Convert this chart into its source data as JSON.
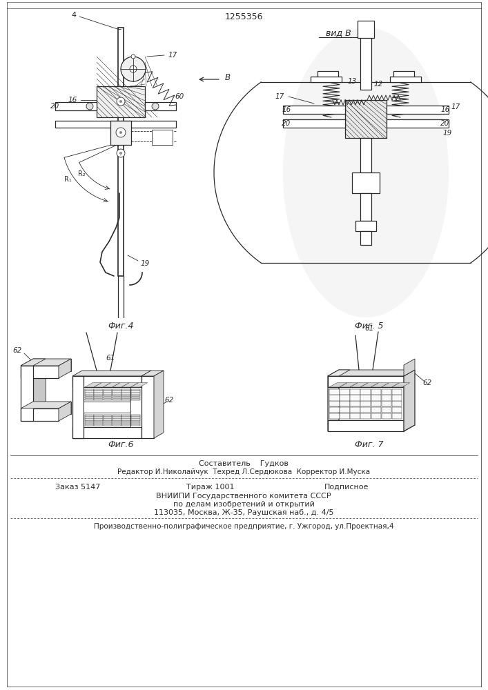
{
  "patent_number": "1255356",
  "title_view": "вид В",
  "fig4_label": "Фиг.4",
  "fig5_label": "Фиг. 5",
  "fig6_label": "Фиг.6",
  "fig7_label": "Фиг. 7",
  "footer_line1": "Составитель    Гудков",
  "footer_line2": "Редактор И.Николайчук  Техред Л.Сердюкова  Корректор И.Муска",
  "footer_line3a": "Заказ 5147",
  "footer_line3b": "Тираж 1001",
  "footer_line3c": "Подписное",
  "footer_line4": "ВНИИПИ Государственного комитета СССР",
  "footer_line5": "по делам изобретений и открытий",
  "footer_line6": "113035, Москва, Ж-35, Раушская наб., д. 4/5",
  "footer_line7": "Производственно-полиграфическое предприятие, г. Ужгород, ул.Проектная,4",
  "bg_color": "#ffffff",
  "line_color": "#2a2a2a"
}
